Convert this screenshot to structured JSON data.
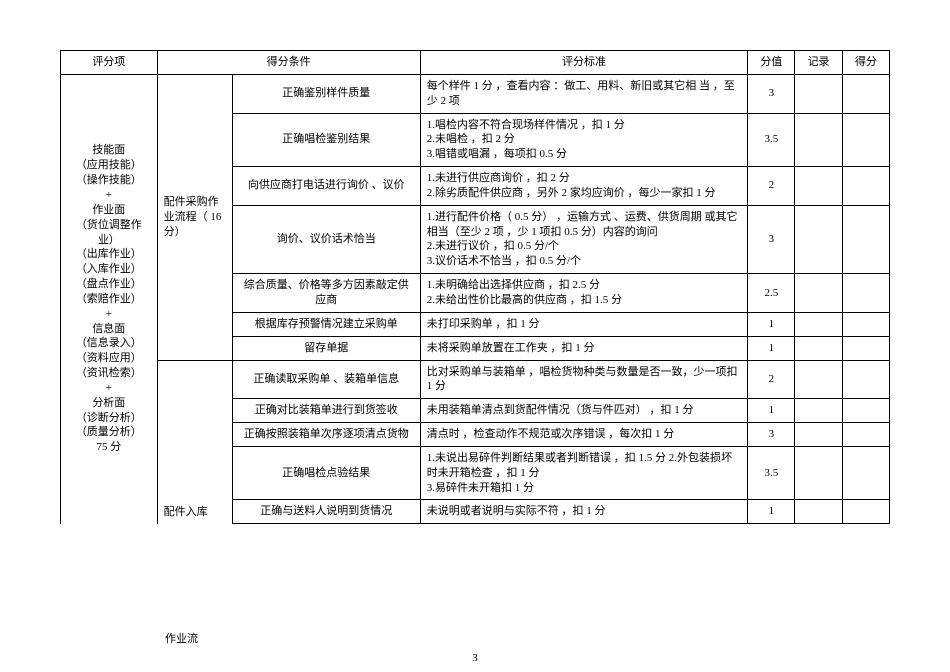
{
  "header": {
    "item": "评分项",
    "condition": "得分条件",
    "standard": "评分标准",
    "score": "分值",
    "record": "记录",
    "got": "得分"
  },
  "leftCategory": "技能面\n（应用技能）\n（操作技能）\n+\n作业面\n（货位调整作业）\n（出库作业）\n（入库作业）\n（盘点作业）\n（索赔作业）\n+\n信息面\n（信息录入）\n（资料应用）\n（资讯检索）\n+\n分析面\n（诊断分析）\n（质量分析）\n75 分",
  "proc1": "配件采购作业流程（    16 分）",
  "proc2": "配件入库",
  "proc2_overflow": "作业流",
  "rows": [
    {
      "cond": "正确鉴别样件质量",
      "std": "每个样件 1 分 ，查看内容 ：做工、用料、新旧或其它相 当 ，至少 2 项",
      "score": "3"
    },
    {
      "cond": "正确唱检鉴别结果",
      "std": "1.唱检内容不符合现场样件情况 ，扣 1 分\n2.未唱检 ，扣 2 分\n3.唱错或唱漏 ，每项扣 0.5 分",
      "score": "3.5"
    },
    {
      "cond": "向供应商打电话进行询价 、议价",
      "std": "1.未进行供应商询价 ，扣 2 分\n2.除劣质配件供应商 ，另外 2 家均应询价 ，每少一家扣 1 分",
      "score": "2"
    },
    {
      "cond": "询价、议价话术恰当",
      "std": "1.进行配件价格（ 0.5 分） ，运输方式 、运费、供货周期 或其它相当（至少 2 项 ，少 1 项扣 0.5 分）内容的询问\n2.未进行议价 ，扣 0.5 分/个\n3.议价话术不恰当 ，扣 0.5 分/个",
      "score": "3"
    },
    {
      "cond": "综合质量、价格等多方因素敲定供应商",
      "std": "1.未明确给出选择供应商 ，扣 2.5 分\n2.未给出性价比最高的供应商 ，扣 1.5 分",
      "score": "2.5"
    },
    {
      "cond": "根据库存预警情况建立采购单",
      "std": "未打印采购单 ，扣 1 分",
      "score": "1"
    },
    {
      "cond": "留存单据",
      "std": "未将采购单放置在工作夹 ，扣 1 分",
      "score": "1"
    },
    {
      "cond": "正确读取采购单 、装箱单信息",
      "std": "比对采购单与装箱单 ，唱检货物种类与数量是否一致，少一项扣 1 分",
      "score": "2"
    },
    {
      "cond": "正确对比装箱单进行到货签收",
      "std": "未用装箱单清点到货配件情况（货与件匹对） ，扣 1 分",
      "score": "1"
    },
    {
      "cond": "正确按照装箱单次序逐项清点货物",
      "std": "清点时 ，检查动作不规范或次序错误 ，每次扣 1 分",
      "score": "3"
    },
    {
      "cond": "正确唱检点验结果",
      "std": "1.未说出易碎件判断结果或者判断错误 ，扣 1.5 分 2.外包装损坏时未开箱检查 ，扣 1 分\n3.易碎件未开箱扣 1 分",
      "score": "3.5"
    },
    {
      "cond": "正确与送料人说明到货情况",
      "std": "未说明或者说明与实际不符 ，扣 1 分",
      "score": "1"
    }
  ],
  "pageNumber": "3",
  "style": {
    "font_family": "SimSun",
    "font_size_pt": 9,
    "border_color": "#000000",
    "background_color": "#ffffff",
    "text_color": "#000000"
  }
}
